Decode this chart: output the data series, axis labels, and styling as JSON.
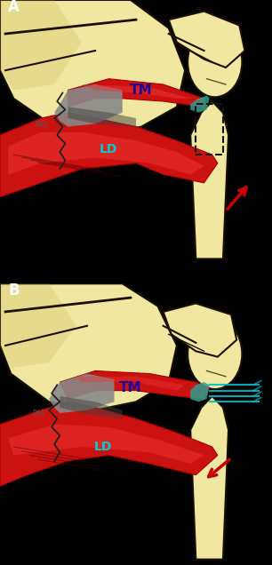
{
  "bg_color": "#000000",
  "bone_color_light": "#f0e8a0",
  "bone_color_mid": "#d4c060",
  "bone_color_dark": "#c0a840",
  "bone_outline": "#1a1200",
  "muscle_red_dark": "#aa0000",
  "muscle_red_mid": "#cc1111",
  "muscle_red_light": "#ee3333",
  "muscle_red_highlight": "#ff8888",
  "muscle_gray_dark": "#404040",
  "muscle_gray_mid": "#888888",
  "muscle_gray_light": "#aaaaaa",
  "muscle_teal": "#30a090",
  "arrow_color": "#cc0000",
  "label_TM_color": "#1a0099",
  "label_LD_color": "#00cccc",
  "suture_color": "#00bbcc",
  "panel_A_label": "A",
  "panel_B_label": "B",
  "TM_label": "TM",
  "LD_label": "LD"
}
